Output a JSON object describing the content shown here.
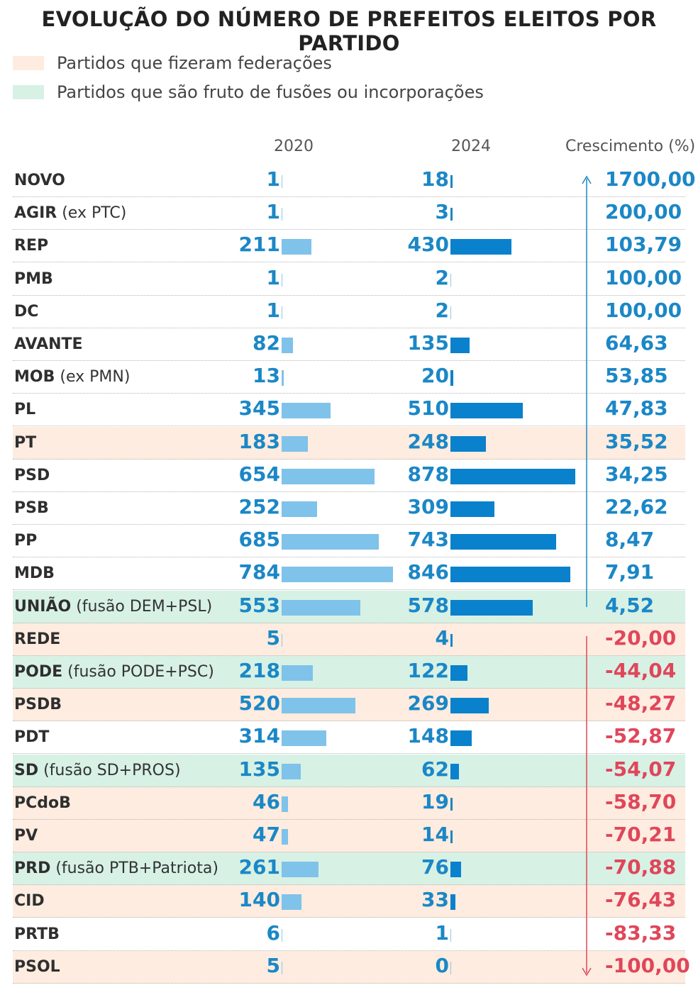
{
  "title": "EVOLUÇÃO DO NÚMERO DE PREFEITOS ELEITOS POR PARTIDO",
  "legend": [
    {
      "label": "Partidos que fizeram federações",
      "color": "#fdecdf"
    },
    {
      "label": "Partidos que são fruto de fusões ou incorporações",
      "color": "#d7f1e5"
    }
  ],
  "colors": {
    "bar_2020": "#7fc2ea",
    "bar_2024": "#0a81cc",
    "positive": "#1b87c6",
    "negative": "#e0465a"
  },
  "chart_data": {
    "type": "bar",
    "title": "EVOLUÇÃO DO NÚMERO DE PREFEITOS ELEITOS POR PARTIDO",
    "columns": [
      "2020",
      "2024",
      "Crescimento (%)"
    ],
    "rows": [
      {
        "party": "NOVO",
        "note": "",
        "group": "none",
        "v2020": 1,
        "v2024": 18,
        "growth": "1700,00"
      },
      {
        "party": "AGIR",
        "note": "(ex PTC)",
        "group": "none",
        "v2020": 1,
        "v2024": 3,
        "growth": "200,00"
      },
      {
        "party": "REP",
        "note": "",
        "group": "none",
        "v2020": 211,
        "v2024": 430,
        "growth": "103,79"
      },
      {
        "party": "PMB",
        "note": "",
        "group": "none",
        "v2020": 1,
        "v2024": 2,
        "growth": "100,00"
      },
      {
        "party": "DC",
        "note": "",
        "group": "none",
        "v2020": 1,
        "v2024": 2,
        "growth": "100,00"
      },
      {
        "party": "AVANTE",
        "note": "",
        "group": "none",
        "v2020": 82,
        "v2024": 135,
        "growth": "64,63"
      },
      {
        "party": "MOB",
        "note": "(ex PMN)",
        "group": "none",
        "v2020": 13,
        "v2024": 20,
        "growth": "53,85"
      },
      {
        "party": "PL",
        "note": "",
        "group": "none",
        "v2020": 345,
        "v2024": 510,
        "growth": "47,83"
      },
      {
        "party": "PT",
        "note": "",
        "group": "federation",
        "v2020": 183,
        "v2024": 248,
        "growth": "35,52"
      },
      {
        "party": "PSD",
        "note": "",
        "group": "none",
        "v2020": 654,
        "v2024": 878,
        "growth": "34,25"
      },
      {
        "party": "PSB",
        "note": "",
        "group": "none",
        "v2020": 252,
        "v2024": 309,
        "growth": "22,62"
      },
      {
        "party": "PP",
        "note": "",
        "group": "none",
        "v2020": 685,
        "v2024": 743,
        "growth": "8,47"
      },
      {
        "party": "MDB",
        "note": "",
        "group": "none",
        "v2020": 784,
        "v2024": 846,
        "growth": "7,91"
      },
      {
        "party": "UNIÃO",
        "note": "(fusão DEM+PSL)",
        "group": "merger",
        "v2020": 553,
        "v2024": 578,
        "growth": "4,52"
      },
      {
        "party": "REDE",
        "note": "",
        "group": "federation",
        "v2020": 5,
        "v2024": 4,
        "growth": "-20,00"
      },
      {
        "party": "PODE",
        "note": "(fusão PODE+PSC)",
        "group": "merger",
        "v2020": 218,
        "v2024": 122,
        "growth": "-44,04"
      },
      {
        "party": "PSDB",
        "note": "",
        "group": "federation",
        "v2020": 520,
        "v2024": 269,
        "growth": "-48,27"
      },
      {
        "party": "PDT",
        "note": "",
        "group": "none",
        "v2020": 314,
        "v2024": 148,
        "growth": "-52,87"
      },
      {
        "party": "SD",
        "note": "(fusão SD+PROS)",
        "group": "merger",
        "v2020": 135,
        "v2024": 62,
        "growth": "-54,07"
      },
      {
        "party": "PCdoB",
        "note": "",
        "group": "federation",
        "v2020": 46,
        "v2024": 19,
        "growth": "-58,70"
      },
      {
        "party": "PV",
        "note": "",
        "group": "federation",
        "v2020": 47,
        "v2024": 14,
        "growth": "-70,21"
      },
      {
        "party": "PRD",
        "note": "(fusão PTB+Patriota)",
        "group": "merger",
        "v2020": 261,
        "v2024": 76,
        "growth": "-70,88"
      },
      {
        "party": "CID",
        "note": "",
        "group": "federation",
        "v2020": 140,
        "v2024": 33,
        "growth": "-76,43"
      },
      {
        "party": "PRTB",
        "note": "",
        "group": "none",
        "v2020": 6,
        "v2024": 1,
        "growth": "-83,33"
      },
      {
        "party": "PSOL",
        "note": "",
        "group": "federation",
        "v2020": 5,
        "v2024": 0,
        "growth": "-100,00"
      }
    ]
  }
}
